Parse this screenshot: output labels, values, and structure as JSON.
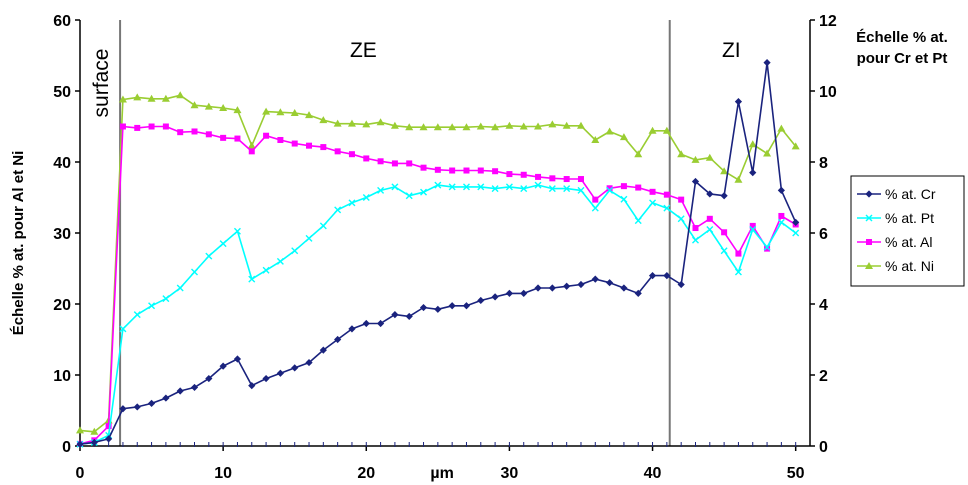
{
  "chart_data": {
    "type": "line",
    "xlabel": "µm",
    "ylabel_left": "Échelle % at. pour Al et Ni",
    "ylabel_right": "Échelle % at. pour Cr et Pt",
    "xlim": [
      0,
      51
    ],
    "ylim_left": [
      0,
      60
    ],
    "ylim_right": [
      0,
      12
    ],
    "x_ticks": [
      "0",
      "10",
      "20",
      "30",
      "40",
      "50"
    ],
    "x_tick_values": [
      0,
      10,
      20,
      30,
      40,
      50
    ],
    "y_left_ticks": [
      "0",
      "10",
      "20",
      "30",
      "40",
      "50",
      "60"
    ],
    "y_left_tick_values": [
      0,
      10,
      20,
      30,
      40,
      50,
      60
    ],
    "y_right_ticks": [
      "0",
      "2",
      "4",
      "6",
      "8",
      "10",
      "12"
    ],
    "y_right_tick_values": [
      0,
      2,
      4,
      6,
      8,
      10,
      12
    ],
    "grid": false,
    "legend_placement": "right",
    "regions": [
      {
        "label": "surface",
        "x_start": 0,
        "x_end": 2.8
      },
      {
        "label": "ZE",
        "x_start": 2.8,
        "x_end": 41.2
      },
      {
        "label": "ZI",
        "x_start": 41.2,
        "x_end": 51
      }
    ],
    "boundaries_x": [
      2.8,
      41.2
    ],
    "baseline_x": [
      0,
      1,
      2,
      3,
      4,
      5,
      6,
      7,
      8,
      9,
      10,
      11,
      12,
      13,
      14,
      15,
      16,
      17,
      18,
      19,
      20,
      21,
      22,
      23,
      24,
      25,
      26,
      27,
      28,
      29,
      30,
      31,
      32,
      33,
      34,
      35,
      36,
      37,
      38,
      39,
      40,
      41,
      42,
      43,
      44,
      45,
      46,
      47,
      48,
      49,
      50
    ],
    "series": [
      {
        "name": "% at. Cr",
        "axis": "right",
        "color": "#1a237e",
        "marker": "diamond",
        "x": [
          0,
          1,
          2,
          3,
          4,
          5,
          6,
          7,
          8,
          9,
          10,
          11,
          12,
          13,
          14,
          15,
          16,
          17,
          18,
          19,
          20,
          21,
          22,
          23,
          24,
          25,
          26,
          27,
          28,
          29,
          30,
          31,
          32,
          33,
          34,
          35,
          36,
          37,
          38,
          39,
          40,
          41,
          42,
          43,
          44,
          45,
          46,
          47,
          48,
          49,
          50
        ],
        "values": [
          0.05,
          0.1,
          0.2,
          1.05,
          1.1,
          1.2,
          1.35,
          1.55,
          1.65,
          1.9,
          2.25,
          2.45,
          1.7,
          1.9,
          2.05,
          2.2,
          2.35,
          2.7,
          3.0,
          3.3,
          3.45,
          3.45,
          3.7,
          3.65,
          3.9,
          3.85,
          3.95,
          3.95,
          4.1,
          4.2,
          4.3,
          4.3,
          4.45,
          4.45,
          4.5,
          4.55,
          4.7,
          4.6,
          4.45,
          4.3,
          4.8,
          4.8,
          4.55,
          7.45,
          7.1,
          7.05,
          9.7,
          7.7,
          10.8,
          7.2,
          6.3
        ]
      },
      {
        "name": "% at. Pt",
        "axis": "right",
        "color": "#00ffff",
        "marker": "x",
        "x": [
          0,
          1,
          2,
          3,
          4,
          5,
          6,
          7,
          8,
          9,
          10,
          11,
          12,
          13,
          14,
          15,
          16,
          17,
          18,
          19,
          20,
          21,
          22,
          23,
          24,
          25,
          26,
          27,
          28,
          29,
          30,
          31,
          32,
          33,
          34,
          35,
          36,
          37,
          38,
          39,
          40,
          41,
          42,
          43,
          44,
          45,
          46,
          47,
          48,
          49,
          50
        ],
        "values": [
          0.05,
          0.1,
          0.3,
          3.3,
          3.7,
          3.95,
          4.15,
          4.45,
          4.9,
          5.35,
          5.7,
          6.05,
          4.7,
          4.95,
          5.2,
          5.5,
          5.85,
          6.2,
          6.65,
          6.85,
          7.0,
          7.2,
          7.3,
          7.05,
          7.15,
          7.35,
          7.3,
          7.3,
          7.3,
          7.25,
          7.3,
          7.25,
          7.35,
          7.25,
          7.25,
          7.2,
          6.7,
          7.2,
          6.95,
          6.35,
          6.85,
          6.7,
          6.4,
          5.8,
          6.1,
          5.5,
          4.9,
          6.1,
          5.6,
          6.3,
          6.0
        ]
      },
      {
        "name": "% at. Al",
        "axis": "left",
        "color": "#ff00ff",
        "marker": "square",
        "x": [
          0,
          1,
          2,
          3,
          4,
          5,
          6,
          7,
          8,
          9,
          10,
          11,
          12,
          13,
          14,
          15,
          16,
          17,
          18,
          19,
          20,
          21,
          22,
          23,
          24,
          25,
          26,
          27,
          28,
          29,
          30,
          31,
          32,
          33,
          34,
          35,
          36,
          37,
          38,
          39,
          40,
          41,
          42,
          43,
          44,
          45,
          46,
          47,
          48,
          49,
          50
        ],
        "values": [
          0.3,
          0.8,
          2.8,
          45.0,
          44.8,
          45.0,
          45.0,
          44.2,
          44.3,
          43.9,
          43.4,
          43.3,
          41.5,
          43.7,
          43.1,
          42.6,
          42.3,
          42.1,
          41.5,
          41.1,
          40.5,
          40.1,
          39.8,
          39.8,
          39.2,
          38.9,
          38.8,
          38.8,
          38.8,
          38.7,
          38.3,
          38.2,
          37.9,
          37.7,
          37.6,
          37.6,
          34.7,
          36.3,
          36.6,
          36.4,
          35.8,
          35.4,
          34.7,
          30.7,
          32.0,
          30.1,
          27.1,
          31.0,
          27.8,
          32.4,
          31.2
        ]
      },
      {
        "name": "% at. Ni",
        "axis": "left",
        "color": "#9acd32",
        "marker": "triangle",
        "x": [
          0,
          1,
          2,
          3,
          4,
          5,
          6,
          7,
          8,
          9,
          10,
          11,
          12,
          13,
          14,
          15,
          16,
          17,
          18,
          19,
          20,
          21,
          22,
          23,
          24,
          25,
          26,
          27,
          28,
          29,
          30,
          31,
          32,
          33,
          34,
          35,
          36,
          37,
          38,
          39,
          40,
          41,
          42,
          43,
          44,
          45,
          46,
          47,
          48,
          49,
          50
        ],
        "values": [
          2.2,
          2.0,
          3.6,
          48.8,
          49.1,
          48.9,
          48.9,
          49.4,
          48.0,
          47.8,
          47.6,
          47.3,
          42.3,
          47.1,
          47.0,
          46.9,
          46.6,
          45.9,
          45.4,
          45.4,
          45.3,
          45.6,
          45.1,
          44.9,
          44.9,
          44.9,
          44.9,
          44.9,
          45.0,
          44.9,
          45.1,
          45.0,
          45.0,
          45.3,
          45.1,
          45.1,
          43.1,
          44.3,
          43.5,
          41.1,
          44.4,
          44.4,
          41.1,
          40.3,
          40.6,
          38.7,
          37.5,
          42.5,
          41.2,
          44.7,
          42.2
        ]
      }
    ]
  }
}
